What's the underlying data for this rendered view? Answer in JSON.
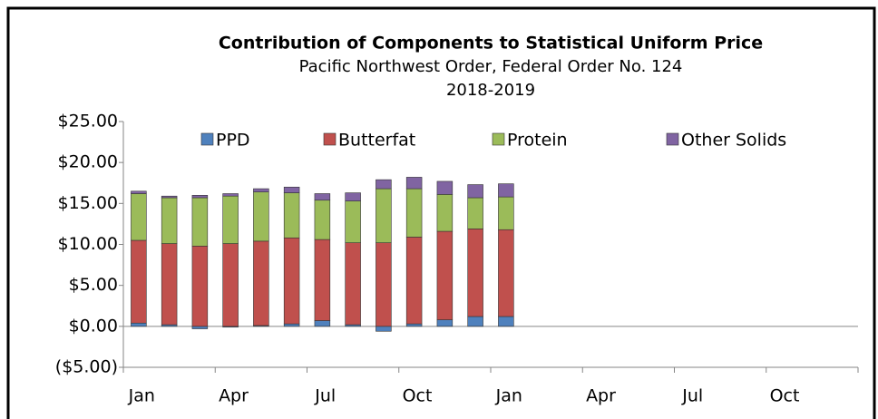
{
  "chart_data": {
    "type": "stacked_bar",
    "title": "Contribution of Components to Statistical Uniform Price",
    "subtitle": "Pacific Northwest Order, Federal Order No. 124",
    "subtitle2": "2018-2019",
    "categories": [
      "Jan",
      null,
      null,
      "Apr",
      null,
      null,
      "Jul",
      null,
      null,
      "Oct",
      null,
      null,
      "Jan",
      null,
      null,
      "Apr",
      null,
      null,
      "Jul",
      null,
      null,
      "Oct",
      null,
      null
    ],
    "series": [
      {
        "name": "PPD",
        "color": "#4f81bd",
        "values": [
          0.4,
          0.2,
          -0.3,
          -0.1,
          0.1,
          0.3,
          0.7,
          0.2,
          -0.6,
          0.3,
          0.8,
          1.2,
          1.2,
          null,
          null,
          null,
          null,
          null,
          null,
          null,
          null,
          null,
          null,
          null
        ]
      },
      {
        "name": "Butterfat",
        "color": "#c0504d",
        "values": [
          10.1,
          9.9,
          9.8,
          10.1,
          10.3,
          10.5,
          9.9,
          10.0,
          10.2,
          10.6,
          10.8,
          10.7,
          10.6,
          null,
          null,
          null,
          null,
          null,
          null,
          null,
          null,
          null,
          null,
          null
        ]
      },
      {
        "name": "Protein",
        "color": "#9bbb59",
        "values": [
          5.7,
          5.6,
          5.9,
          5.8,
          6.0,
          5.5,
          4.8,
          5.1,
          6.6,
          5.9,
          4.5,
          3.8,
          4.0,
          null,
          null,
          null,
          null,
          null,
          null,
          null,
          null,
          null,
          null,
          null
        ]
      },
      {
        "name": "Other Solids",
        "color": "#8064a2",
        "values": [
          0.3,
          0.2,
          0.3,
          0.3,
          0.4,
          0.7,
          0.8,
          1.0,
          1.1,
          1.4,
          1.6,
          1.6,
          1.6,
          null,
          null,
          null,
          null,
          null,
          null,
          null,
          null,
          null,
          null,
          null
        ]
      }
    ],
    "ylim": [
      -5,
      25
    ],
    "yticks": [
      {
        "value": -5,
        "label": "($5.00)"
      },
      {
        "value": 0,
        "label": "$0.00"
      },
      {
        "value": 5,
        "label": "$5.00"
      },
      {
        "value": 10,
        "label": "$10.00"
      },
      {
        "value": 15,
        "label": "$15.00"
      },
      {
        "value": 20,
        "label": "$20.00"
      },
      {
        "value": 25,
        "label": "$25.00"
      }
    ],
    "grid": false,
    "legend": "top"
  }
}
